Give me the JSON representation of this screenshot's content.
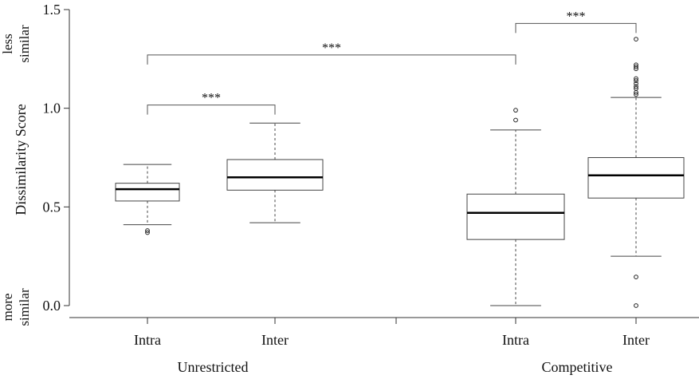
{
  "chart_data": {
    "type": "boxplot",
    "ylabel": "Dissimilarity Score",
    "ylim": [
      -0.07,
      1.55
    ],
    "yticks": [
      0.0,
      0.5,
      1.0,
      1.5
    ],
    "ytick_labels": [
      "0.0",
      "0.5",
      "1.0",
      "1.5"
    ],
    "top_note": [
      "less",
      "similar"
    ],
    "bottom_note": [
      "more",
      "similar"
    ],
    "groups": [
      {
        "name": "Unrestricted",
        "boxes": [
          {
            "category": "Intra",
            "whisker_low": 0.41,
            "q1": 0.53,
            "median": 0.59,
            "q3": 0.62,
            "whisker_high": 0.715,
            "outliers": [
              0.38,
              0.37
            ]
          },
          {
            "category": "Inter",
            "whisker_low": 0.42,
            "q1": 0.585,
            "median": 0.65,
            "q3": 0.74,
            "whisker_high": 0.925,
            "outliers": []
          }
        ]
      },
      {
        "name": "Competitive",
        "boxes": [
          {
            "category": "Intra",
            "whisker_low": 0.0,
            "q1": 0.335,
            "median": 0.47,
            "q3": 0.565,
            "whisker_high": 0.89,
            "outliers": [
              0.94,
              0.99
            ]
          },
          {
            "category": "Inter",
            "whisker_low": 0.25,
            "q1": 0.545,
            "median": 0.66,
            "q3": 0.75,
            "whisker_high": 1.055,
            "outliers": [
              0.0,
              0.145,
              1.07,
              1.08,
              1.1,
              1.11,
              1.125,
              1.14,
              1.15,
              1.2,
              1.21,
              1.22,
              1.35
            ]
          }
        ]
      }
    ],
    "significance": [
      {
        "label": "***",
        "from": [
          0,
          0
        ],
        "to": [
          0,
          1
        ]
      },
      {
        "label": "***",
        "from": [
          0,
          0
        ],
        "to": [
          1,
          0
        ]
      },
      {
        "label": "***",
        "from": [
          1,
          0
        ],
        "to": [
          1,
          1
        ]
      }
    ]
  }
}
